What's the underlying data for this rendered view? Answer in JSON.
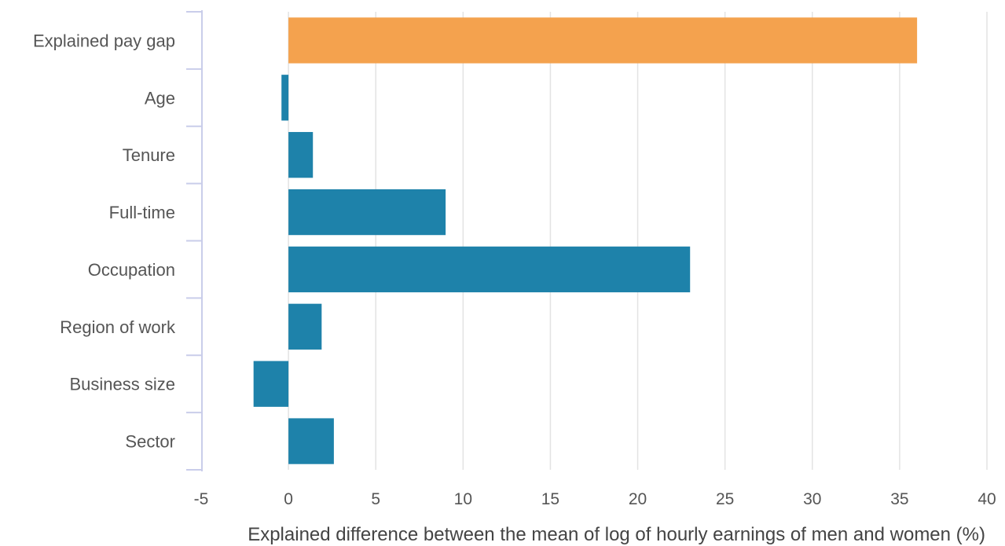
{
  "chart_data": {
    "type": "bar",
    "orientation": "horizontal",
    "categories": [
      "Explained pay gap",
      "Age",
      "Tenure",
      "Full-time",
      "Occupation",
      "Region of work",
      "Business size",
      "Sector"
    ],
    "values": [
      36,
      -0.4,
      1.4,
      9.0,
      23.0,
      1.9,
      -2.0,
      2.6
    ],
    "bar_colors": [
      "#f4a04a",
      "#1a7fa8",
      "#1a7fa8",
      "#1a7fa8",
      "#1a7fa8",
      "#1a7fa8",
      "#1a7fa8",
      "#1a7fa8"
    ],
    "title": "",
    "xlabel": "Explained difference between the mean of log of hourly earnings of men and women (%)",
    "ylabel": "",
    "xlim": [
      -5,
      40
    ],
    "xticks": [
      -5,
      0,
      5,
      10,
      15,
      20,
      25,
      30,
      35,
      40
    ],
    "grid": "vertical",
    "legend": "none"
  },
  "colors": {
    "highlight": "#f4a04a",
    "bar": "#1a7fa8",
    "grid": "#e3e3e3",
    "axis": "#c9cdea"
  }
}
